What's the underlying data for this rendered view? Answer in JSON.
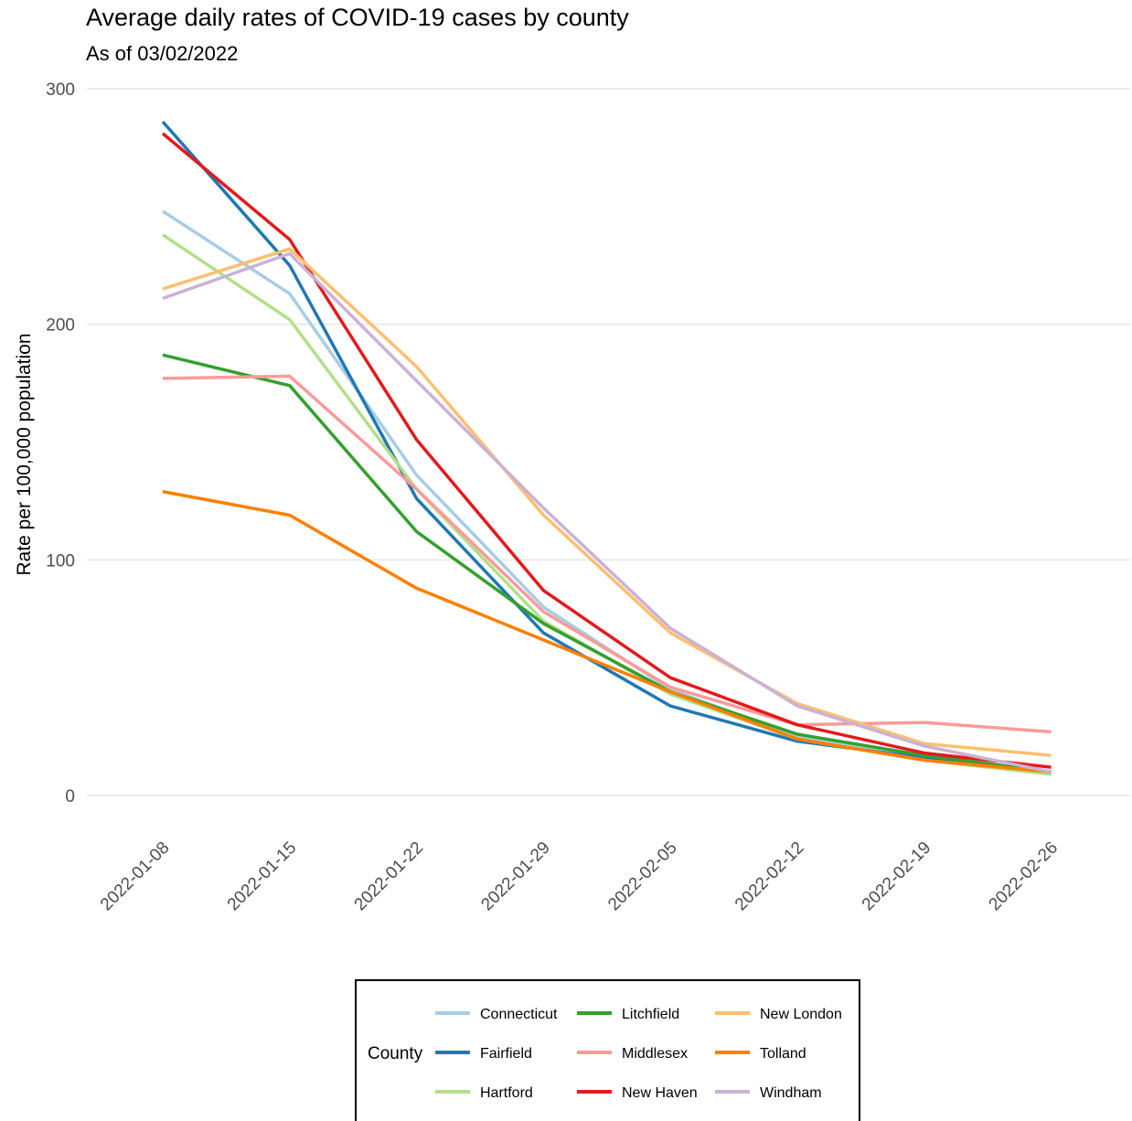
{
  "chart_data": {
    "type": "line",
    "title": "Average daily rates of COVID-19 cases by county",
    "subtitle": "As of 03/02/2022",
    "xlabel": "",
    "ylabel": "Rate per 100,000 population",
    "ylim": [
      0,
      300
    ],
    "yticks": [
      0,
      100,
      200,
      300
    ],
    "grid": true,
    "x": [
      "2022-01-08",
      "2022-01-15",
      "2022-01-22",
      "2022-01-29",
      "2022-02-05",
      "2022-02-12",
      "2022-02-19",
      "2022-02-26"
    ],
    "legend": {
      "title": "County",
      "position": "bottom"
    },
    "series": [
      {
        "name": "Connecticut",
        "color": "#a6cee3",
        "values": [
          248,
          213,
          136,
          80,
          45,
          25,
          16,
          10
        ]
      },
      {
        "name": "Fairfield",
        "color": "#1f78b4",
        "values": [
          286,
          225,
          126,
          69,
          38,
          23,
          16,
          10
        ]
      },
      {
        "name": "Hartford",
        "color": "#b2df8a",
        "values": [
          238,
          202,
          130,
          74,
          43,
          24,
          15,
          9
        ]
      },
      {
        "name": "Litchfield",
        "color": "#33a02c",
        "values": [
          187,
          174,
          112,
          73,
          44,
          26,
          17,
          10
        ]
      },
      {
        "name": "Middlesex",
        "color": "#fb9a99",
        "values": [
          177,
          178,
          130,
          78,
          46,
          30,
          31,
          27
        ]
      },
      {
        "name": "New Haven",
        "color": "#e31a1c",
        "values": [
          281,
          236,
          151,
          87,
          50,
          30,
          18,
          12
        ]
      },
      {
        "name": "New London",
        "color": "#fdbf6f",
        "values": [
          215,
          232,
          182,
          119,
          69,
          39,
          22,
          17
        ]
      },
      {
        "name": "Tolland",
        "color": "#ff7f00",
        "values": [
          129,
          119,
          88,
          66,
          44,
          24,
          15,
          10
        ]
      },
      {
        "name": "Windham",
        "color": "#cab2d6",
        "values": [
          211,
          230,
          176,
          122,
          71,
          38,
          21,
          10
        ]
      }
    ]
  }
}
